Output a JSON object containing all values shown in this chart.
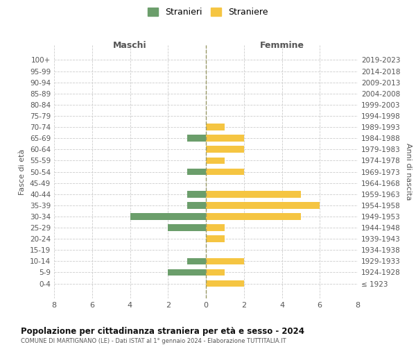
{
  "age_groups": [
    "100+",
    "95-99",
    "90-94",
    "85-89",
    "80-84",
    "75-79",
    "70-74",
    "65-69",
    "60-64",
    "55-59",
    "50-54",
    "45-49",
    "40-44",
    "35-39",
    "30-34",
    "25-29",
    "20-24",
    "15-19",
    "10-14",
    "5-9",
    "0-4"
  ],
  "birth_years": [
    "≤ 1923",
    "1924-1928",
    "1929-1933",
    "1934-1938",
    "1939-1943",
    "1944-1948",
    "1949-1953",
    "1954-1958",
    "1959-1963",
    "1964-1968",
    "1969-1973",
    "1974-1978",
    "1979-1983",
    "1984-1988",
    "1989-1993",
    "1994-1998",
    "1999-2003",
    "2004-2008",
    "2009-2013",
    "2014-2018",
    "2019-2023"
  ],
  "males": [
    0,
    0,
    0,
    0,
    0,
    0,
    0,
    1,
    0,
    0,
    1,
    0,
    1,
    1,
    4,
    2,
    0,
    0,
    1,
    2,
    0
  ],
  "females": [
    0,
    0,
    0,
    0,
    0,
    0,
    1,
    2,
    2,
    1,
    2,
    0,
    5,
    6,
    5,
    1,
    1,
    0,
    2,
    1,
    2
  ],
  "male_color": "#6b9e6b",
  "female_color": "#f5c542",
  "title": "Popolazione per cittadinanza straniera per età e sesso - 2024",
  "subtitle": "COMUNE DI MARTIGNANO (LE) - Dati ISTAT al 1° gennaio 2024 - Elaborazione TUTTITALIA.IT",
  "legend_male": "Stranieri",
  "legend_female": "Straniere",
  "xlabel_left": "Maschi",
  "xlabel_right": "Femmine",
  "ylabel_left": "Fasce di età",
  "ylabel_right": "Anni di nascita",
  "xlim": 8,
  "background_color": "#ffffff",
  "grid_color": "#cccccc"
}
